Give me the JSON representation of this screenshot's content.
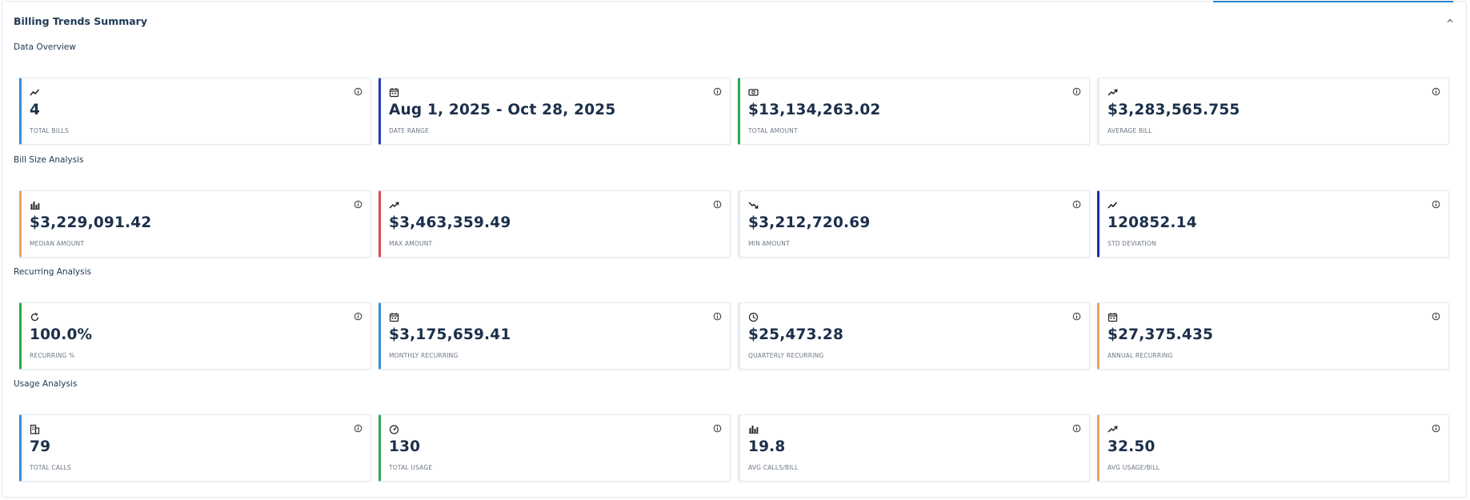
{
  "panel": {
    "title": "Billing Trends Summary"
  },
  "sections": [
    {
      "title": "Data Overview",
      "cards": [
        {
          "icon": "line-trend-icon",
          "value": "4",
          "label": "TOTAL BILLS",
          "accent": "#3a8ed6"
        },
        {
          "icon": "calendar-icon",
          "value": "Aug 1, 2025 - Oct 28, 2025",
          "label": "DATE RANGE",
          "accent": "#1f3fb8"
        },
        {
          "icon": "money-icon",
          "value": "$13,134,263.02",
          "label": "TOTAL AMOUNT",
          "accent": "#2fa84f"
        },
        {
          "icon": "trend-up-icon",
          "value": "$3,283,565.755",
          "label": "AVERAGE BILL",
          "accent": "#e8ecf1"
        }
      ]
    },
    {
      "title": "Bill Size Analysis",
      "cards": [
        {
          "icon": "bar-chart-icon",
          "value": "$3,229,091.42",
          "label": "MEDIAN AMOUNT",
          "accent": "#f0a35c"
        },
        {
          "icon": "trend-up-icon",
          "value": "$3,463,359.49",
          "label": "MAX AMOUNT",
          "accent": "#e0474c"
        },
        {
          "icon": "trend-down-icon",
          "value": "$3,212,720.69",
          "label": "MIN AMOUNT",
          "accent": "#e8ecf1"
        },
        {
          "icon": "line-trend-icon",
          "value": "120852.14",
          "label": "STD DEVIATION",
          "accent": "#1f2fa0"
        }
      ]
    },
    {
      "title": "Recurring Analysis",
      "cards": [
        {
          "icon": "refresh-icon",
          "value": "100.0%",
          "label": "RECURRING %",
          "accent": "#2fa84f"
        },
        {
          "icon": "calendar-icon",
          "value": "$3,175,659.41",
          "label": "MONTHLY RECURRING",
          "accent": "#3a8ed6"
        },
        {
          "icon": "clock-icon",
          "value": "$25,473.28",
          "label": "QUARTERLY RECURRING",
          "accent": "#e8ecf1"
        },
        {
          "icon": "calendar-icon",
          "value": "$27,375.435",
          "label": "ANNUAL RECURRING",
          "accent": "#f0a35c"
        }
      ]
    },
    {
      "title": "Usage Analysis",
      "cards": [
        {
          "icon": "building-icon",
          "value": "79",
          "label": "TOTAL CALLS",
          "accent": "#3a8ed6"
        },
        {
          "icon": "gauge-icon",
          "value": "130",
          "label": "TOTAL USAGE",
          "accent": "#2fa84f"
        },
        {
          "icon": "bar-chart-icon",
          "value": "19.8",
          "label": "AVG CALLS/BILL",
          "accent": "#e8ecf1"
        },
        {
          "icon": "trend-up-icon",
          "value": "32.50",
          "label": "AVG USAGE/BILL",
          "accent": "#f0a35c"
        }
      ]
    }
  ]
}
